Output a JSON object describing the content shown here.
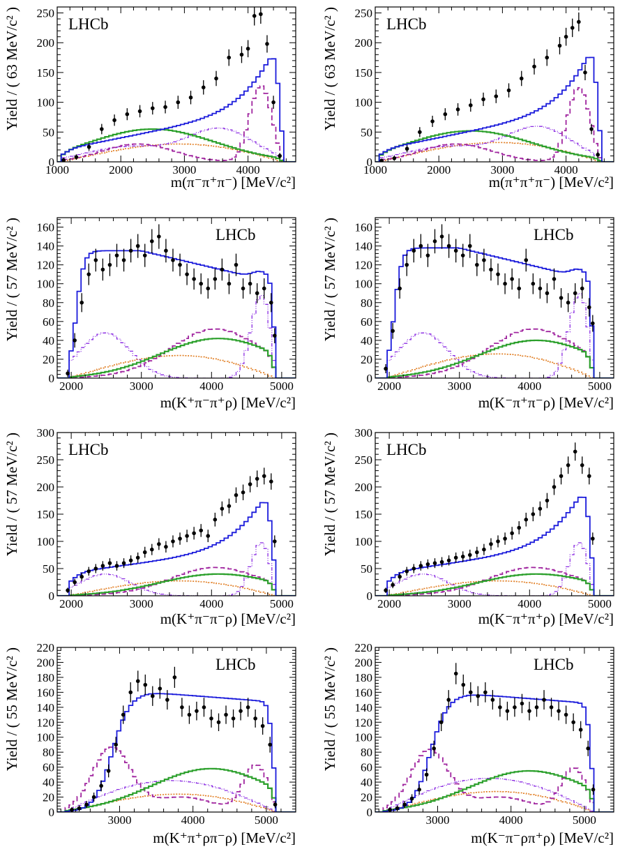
{
  "colors": {
    "data": "#000000",
    "total": "#1a1adb",
    "magenta": "#a0259f",
    "green": "#2ca02c",
    "orange": "#e07a1c",
    "violet": "#8a2be2"
  },
  "chart_data": [
    {
      "type": "histogram",
      "title": "LHCb",
      "legend_position": "top-left",
      "xlabel": "m(π⁻π⁺π⁻) [MeV/c²]",
      "ylabel": "Yield / ( 63 MeV/c² )",
      "xlim": [
        1000,
        4750
      ],
      "ylim": [
        0,
        260
      ],
      "xticks": [
        1000,
        2000,
        3000,
        4000
      ],
      "yticks": [
        0,
        50,
        100,
        150,
        200,
        250
      ],
      "dist": {
        "x0": 1050,
        "x1": 4550,
        "shape": "rising",
        "peak": 225,
        "lowA": 20,
        "lowB": 7,
        "mag": [
          30,
          128
        ],
        "violet": [
          25,
          55
        ],
        "green": [
          2500,
          55
        ],
        "orange": 35
      },
      "points": {
        "x": [
          1100,
          1300,
          1500,
          1700,
          1900,
          2100,
          2300,
          2500,
          2700,
          2900,
          3100,
          3300,
          3500,
          3700,
          3900,
          4000,
          4100,
          4200,
          4300,
          4400,
          4500
        ],
        "y": [
          3,
          8,
          25,
          55,
          70,
          80,
          85,
          90,
          92,
          100,
          108,
          125,
          140,
          175,
          180,
          190,
          245,
          248,
          198,
          100,
          10
        ]
      }
    },
    {
      "type": "histogram",
      "title": "LHCb",
      "legend_position": "top-left",
      "xlabel": "m(π⁺π⁺π⁻) [MeV/c²]",
      "ylabel": "Yield / ( 63 MeV/c² )",
      "xlim": [
        1000,
        4750
      ],
      "ylim": [
        0,
        260
      ],
      "xticks": [
        1000,
        2000,
        3000,
        4000
      ],
      "yticks": [
        0,
        50,
        100,
        150,
        200,
        250
      ],
      "dist": {
        "x0": 1050,
        "x1": 4550,
        "shape": "rising",
        "peak": 228,
        "lowA": 20,
        "lowB": 7,
        "mag": [
          30,
          125
        ],
        "violet": [
          25,
          58
        ],
        "green": [
          2500,
          52
        ],
        "orange": 38
      },
      "points": {
        "x": [
          1100,
          1300,
          1500,
          1700,
          1900,
          2100,
          2300,
          2500,
          2700,
          2900,
          3100,
          3300,
          3500,
          3700,
          3900,
          4000,
          4100,
          4200,
          4300,
          4400,
          4500
        ],
        "y": [
          2,
          6,
          22,
          50,
          68,
          80,
          88,
          95,
          105,
          110,
          120,
          140,
          160,
          175,
          195,
          210,
          225,
          235,
          150,
          55,
          12
        ]
      }
    },
    {
      "type": "histogram",
      "title": "LHCb",
      "legend_position": "top-right",
      "xlabel": "m(K⁺π⁻π⁺ρ) [MeV/c²]",
      "ylabel": "Yield / ( 57 MeV/c² )",
      "xlim": [
        1800,
        5200
      ],
      "ylim": [
        0,
        170
      ],
      "xticks": [
        2000,
        3000,
        4000,
        5000
      ],
      "yticks": [
        0,
        20,
        40,
        60,
        80,
        100,
        120,
        140,
        160
      ],
      "dist": {
        "x0": 1950,
        "x1": 4920,
        "shape": "plateau",
        "peak": 135,
        "lowA": 0,
        "lowB": 0,
        "mag": [
          45,
          45
        ],
        "violet": [
          48,
          88
        ],
        "green": [
          4100,
          42
        ],
        "orange": 28
      },
      "points": {
        "x": [
          1950,
          2050,
          2150,
          2250,
          2350,
          2450,
          2550,
          2650,
          2750,
          2850,
          2950,
          3050,
          3150,
          3250,
          3350,
          3450,
          3550,
          3650,
          3750,
          3850,
          3950,
          4050,
          4150,
          4250,
          4350,
          4450,
          4550,
          4650,
          4750,
          4850,
          4900
        ],
        "y": [
          5,
          40,
          80,
          110,
          125,
          115,
          120,
          130,
          125,
          135,
          140,
          130,
          145,
          150,
          135,
          125,
          120,
          110,
          105,
          100,
          95,
          105,
          115,
          100,
          120,
          95,
          100,
          90,
          95,
          80,
          45
        ]
      }
    },
    {
      "type": "histogram",
      "title": "LHCb",
      "legend_position": "top-right",
      "xlabel": "m(K⁻π⁺π⁻ρ) [MeV/c²]",
      "ylabel": "Yield / ( 57 MeV/c² )",
      "xlim": [
        1800,
        5200
      ],
      "ylim": [
        0,
        170
      ],
      "xticks": [
        2000,
        3000,
        4000,
        5000
      ],
      "yticks": [
        0,
        20,
        40,
        60,
        80,
        100,
        120,
        140,
        160
      ],
      "dist": {
        "x0": 1950,
        "x1": 4920,
        "shape": "plateau",
        "peak": 138,
        "lowA": 0,
        "lowB": 0,
        "mag": [
          45,
          45
        ],
        "violet": [
          48,
          90
        ],
        "green": [
          4100,
          40
        ],
        "orange": 30
      },
      "points": {
        "x": [
          1950,
          2050,
          2150,
          2250,
          2350,
          2450,
          2550,
          2650,
          2750,
          2850,
          2950,
          3050,
          3150,
          3250,
          3350,
          3450,
          3550,
          3650,
          3750,
          3850,
          3950,
          4050,
          4150,
          4250,
          4350,
          4450,
          4550,
          4650,
          4750,
          4850,
          4900
        ],
        "y": [
          10,
          50,
          95,
          120,
          135,
          140,
          130,
          145,
          150,
          140,
          135,
          130,
          140,
          120,
          125,
          115,
          110,
          100,
          105,
          95,
          125,
          100,
          95,
          90,
          105,
          85,
          80,
          90,
          95,
          75,
          58
        ]
      }
    },
    {
      "type": "histogram",
      "title": "LHCb",
      "legend_position": "top-left",
      "xlabel": "m(K⁺π⁻π⁻ρ) [MeV/c²]",
      "ylabel": "Yield / ( 57 MeV/c² )",
      "xlim": [
        1800,
        5200
      ],
      "ylim": [
        0,
        300
      ],
      "xticks": [
        2000,
        3000,
        4000,
        5000
      ],
      "yticks": [
        0,
        50,
        100,
        150,
        200,
        250,
        300
      ],
      "dist": {
        "x0": 1950,
        "x1": 4920,
        "shape": "rising",
        "peak": 222,
        "lowA": 42,
        "lowB": 6,
        "mag": [
          45,
          48
        ],
        "violet": [
          40,
          98
        ],
        "green": [
          4100,
          40
        ],
        "orange": 32
      },
      "points": {
        "x": [
          1950,
          2050,
          2150,
          2250,
          2350,
          2450,
          2550,
          2650,
          2750,
          2850,
          2950,
          3050,
          3150,
          3250,
          3350,
          3450,
          3550,
          3650,
          3750,
          3850,
          3950,
          4050,
          4150,
          4250,
          4350,
          4450,
          4550,
          4650,
          4750,
          4850,
          4900
        ],
        "y": [
          10,
          25,
          35,
          45,
          50,
          55,
          60,
          55,
          60,
          65,
          70,
          80,
          85,
          95,
          90,
          100,
          105,
          110,
          115,
          120,
          110,
          140,
          160,
          165,
          185,
          190,
          205,
          215,
          220,
          210,
          100
        ]
      }
    },
    {
      "type": "histogram",
      "title": "LHCb",
      "legend_position": "top-left",
      "xlabel": "m(K⁻π⁺π⁺ρ) [MeV/c²]",
      "ylabel": "Yield / ( 57 MeV/c² )",
      "xlim": [
        1800,
        5200
      ],
      "ylim": [
        0,
        300
      ],
      "xticks": [
        2000,
        3000,
        4000,
        5000
      ],
      "yticks": [
        0,
        50,
        100,
        150,
        200,
        250,
        300
      ],
      "dist": {
        "x0": 1950,
        "x1": 4920,
        "shape": "rising",
        "peak": 235,
        "lowA": 42,
        "lowB": 6,
        "mag": [
          45,
          48
        ],
        "violet": [
          40,
          98
        ],
        "green": [
          4100,
          40
        ],
        "orange": 32
      },
      "points": {
        "x": [
          1950,
          2050,
          2150,
          2250,
          2350,
          2450,
          2550,
          2650,
          2750,
          2850,
          2950,
          3050,
          3150,
          3250,
          3350,
          3450,
          3550,
          3650,
          3750,
          3850,
          3950,
          4050,
          4150,
          4250,
          4350,
          4450,
          4550,
          4650,
          4750,
          4850,
          4900
        ],
        "y": [
          10,
          20,
          35,
          45,
          50,
          55,
          58,
          60,
          62,
          65,
          70,
          72,
          75,
          80,
          85,
          95,
          100,
          105,
          115,
          125,
          140,
          150,
          160,
          175,
          200,
          220,
          240,
          265,
          240,
          220,
          105
        ]
      }
    },
    {
      "type": "histogram",
      "title": "LHCb",
      "legend_position": "top-right",
      "xlabel": "m(K⁺π⁺ρπ⁻ρ) [MeV/c²]",
      "ylabel": "Yield / ( 55 MeV/c² )",
      "xlim": [
        2150,
        5400
      ],
      "ylim": [
        0,
        220
      ],
      "xticks": [
        3000,
        4000,
        5000
      ],
      "yticks": [
        0,
        20,
        40,
        60,
        80,
        100,
        120,
        140,
        160,
        180,
        200,
        220
      ],
      "dist": {
        "x0": 2250,
        "x1": 5150,
        "shape": "hump",
        "peak": 160,
        "lowA": 0,
        "lowB": 0,
        "mag": [
          85,
          62
        ],
        "violet": [
          42,
          42
        ],
        "green": [
          4250,
          58
        ],
        "orange": 28
      },
      "points": {
        "x": [
          2350,
          2450,
          2550,
          2650,
          2750,
          2850,
          2950,
          3050,
          3150,
          3250,
          3350,
          3450,
          3550,
          3650,
          3750,
          3850,
          3950,
          4050,
          4150,
          4250,
          4350,
          4450,
          4550,
          4650,
          4750,
          4850,
          4950,
          5050,
          5120
        ],
        "y": [
          3,
          5,
          10,
          20,
          35,
          55,
          90,
          130,
          160,
          175,
          170,
          155,
          165,
          150,
          180,
          140,
          130,
          135,
          140,
          125,
          120,
          130,
          125,
          135,
          140,
          125,
          115,
          90,
          10
        ]
      }
    },
    {
      "type": "histogram",
      "title": "LHCb",
      "legend_position": "top-right",
      "xlabel": "m(K⁻π⁻ρπ⁺ρ) [MeV/c²]",
      "ylabel": "Yield / ( 55 MeV/c² )",
      "xlim": [
        2150,
        5400
      ],
      "ylim": [
        0,
        220
      ],
      "xticks": [
        3000,
        4000,
        5000
      ],
      "yticks": [
        0,
        20,
        40,
        60,
        80,
        100,
        120,
        140,
        160,
        180,
        200,
        220
      ],
      "dist": {
        "x0": 2250,
        "x1": 5150,
        "shape": "hump",
        "peak": 158,
        "lowA": 0,
        "lowB": 0,
        "mag": [
          82,
          58
        ],
        "violet": [
          45,
          45
        ],
        "green": [
          4250,
          55
        ],
        "orange": 32
      },
      "points": {
        "x": [
          2350,
          2450,
          2550,
          2650,
          2750,
          2850,
          2950,
          3050,
          3150,
          3250,
          3350,
          3450,
          3550,
          3650,
          3750,
          3850,
          3950,
          4050,
          4150,
          4250,
          4350,
          4450,
          4550,
          4650,
          4750,
          4850,
          4950,
          5050,
          5120
        ],
        "y": [
          3,
          5,
          10,
          18,
          30,
          50,
          85,
          120,
          150,
          185,
          170,
          160,
          155,
          160,
          150,
          140,
          135,
          140,
          145,
          135,
          140,
          150,
          140,
          135,
          130,
          120,
          110,
          85,
          30
        ]
      }
    }
  ]
}
